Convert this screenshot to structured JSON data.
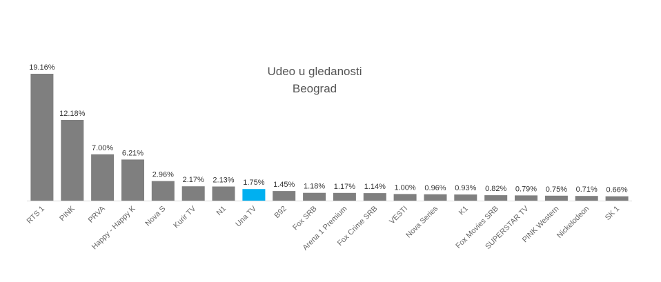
{
  "chart_data": {
    "type": "bar",
    "title": [
      "Udeo u gledanosti",
      "Beograd"
    ],
    "categories": [
      "RTS 1",
      "PINK",
      "PRVA",
      "Happy - Happy K",
      "Nova S",
      "Kurir TV",
      "N1",
      "Una TV",
      "B92",
      "Fox SRB",
      "Arena 1 Premium",
      "Fox Crime SRB",
      "VESTI",
      "Nova Series",
      "K1",
      "Fox Movies SRB",
      "SUPERSTAR TV",
      "PINK Western",
      "Nickelodeon",
      "SK 1"
    ],
    "values": [
      19.16,
      12.18,
      7.0,
      6.21,
      2.96,
      2.17,
      2.13,
      1.75,
      1.45,
      1.18,
      1.17,
      1.14,
      1.0,
      0.96,
      0.93,
      0.82,
      0.79,
      0.75,
      0.71,
      0.66
    ],
    "value_labels": [
      "19.16%",
      "12.18%",
      "7.00%",
      "6.21%",
      "2.96%",
      "2.17%",
      "2.13%",
      "1.75%",
      "1.45%",
      "1.18%",
      "1.17%",
      "1.14%",
      "1.00%",
      "0.96%",
      "0.93%",
      "0.82%",
      "0.79%",
      "0.75%",
      "0.71%",
      "0.66%"
    ],
    "ylim": [
      0,
      20
    ],
    "grid": false,
    "legend": "none",
    "colors": {
      "default": "#7f7f7f",
      "highlight": "#00b0f0",
      "axis": "#d9d9d9"
    },
    "highlight_category": "Una TV"
  }
}
